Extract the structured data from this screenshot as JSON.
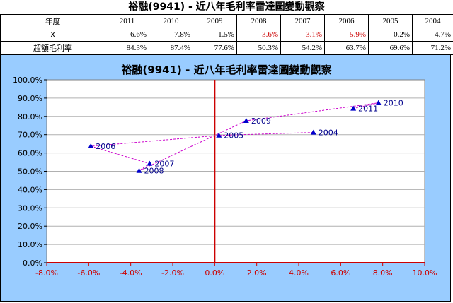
{
  "page_title": "裕融(9941) - 近八年毛利率雷達圖變動觀察",
  "table": {
    "header_label": "年度",
    "years": [
      "2011",
      "2010",
      "2009",
      "2008",
      "2007",
      "2006",
      "2005",
      "2004"
    ],
    "rows": [
      {
        "label": "X",
        "values": [
          "6.6%",
          "7.8%",
          "1.5%",
          "-3.6%",
          "-3.1%",
          "-5.9%",
          "0.2%",
          "4.7%"
        ]
      },
      {
        "label": "超額毛利率",
        "values": [
          "84.3%",
          "87.4%",
          "77.6%",
          "50.3%",
          "54.2%",
          "63.7%",
          "69.6%",
          "71.2%"
        ]
      }
    ]
  },
  "chart_data": {
    "type": "scatter",
    "title": "裕融(9941) - 近八年毛利率雷達圖變動觀察",
    "x_ticks": [
      "-8.0%",
      "-6.0%",
      "-4.0%",
      "-2.0%",
      "0.0%",
      "2.0%",
      "4.0%",
      "6.0%",
      "8.0%",
      "10.0%"
    ],
    "y_ticks": [
      "0.0%",
      "10.0%",
      "20.0%",
      "30.0%",
      "40.0%",
      "50.0%",
      "60.0%",
      "70.0%",
      "80.0%",
      "90.0%",
      "100.0%"
    ],
    "xlim": [
      -8,
      10
    ],
    "ylim": [
      0,
      100
    ],
    "grid": "horizontal",
    "points": [
      {
        "label": "2004",
        "x": 4.7,
        "y": 71.2
      },
      {
        "label": "2005",
        "x": 0.2,
        "y": 69.6
      },
      {
        "label": "2006",
        "x": -5.9,
        "y": 63.7
      },
      {
        "label": "2007",
        "x": -3.1,
        "y": 54.2
      },
      {
        "label": "2008",
        "x": -3.6,
        "y": 50.3
      },
      {
        "label": "2009",
        "x": 1.5,
        "y": 77.6
      },
      {
        "label": "2010",
        "x": 7.8,
        "y": 87.4
      },
      {
        "label": "2011",
        "x": 6.6,
        "y": 84.3
      }
    ],
    "colors": {
      "marker": "#0000cc",
      "trend_line": "#cc00cc",
      "zero_axis": "#cc0000",
      "x_tick_label": "#cc0000",
      "plot_bg": "#ffffff",
      "frame_bg": "#99ccff",
      "grid": "#b0b0b0"
    }
  }
}
